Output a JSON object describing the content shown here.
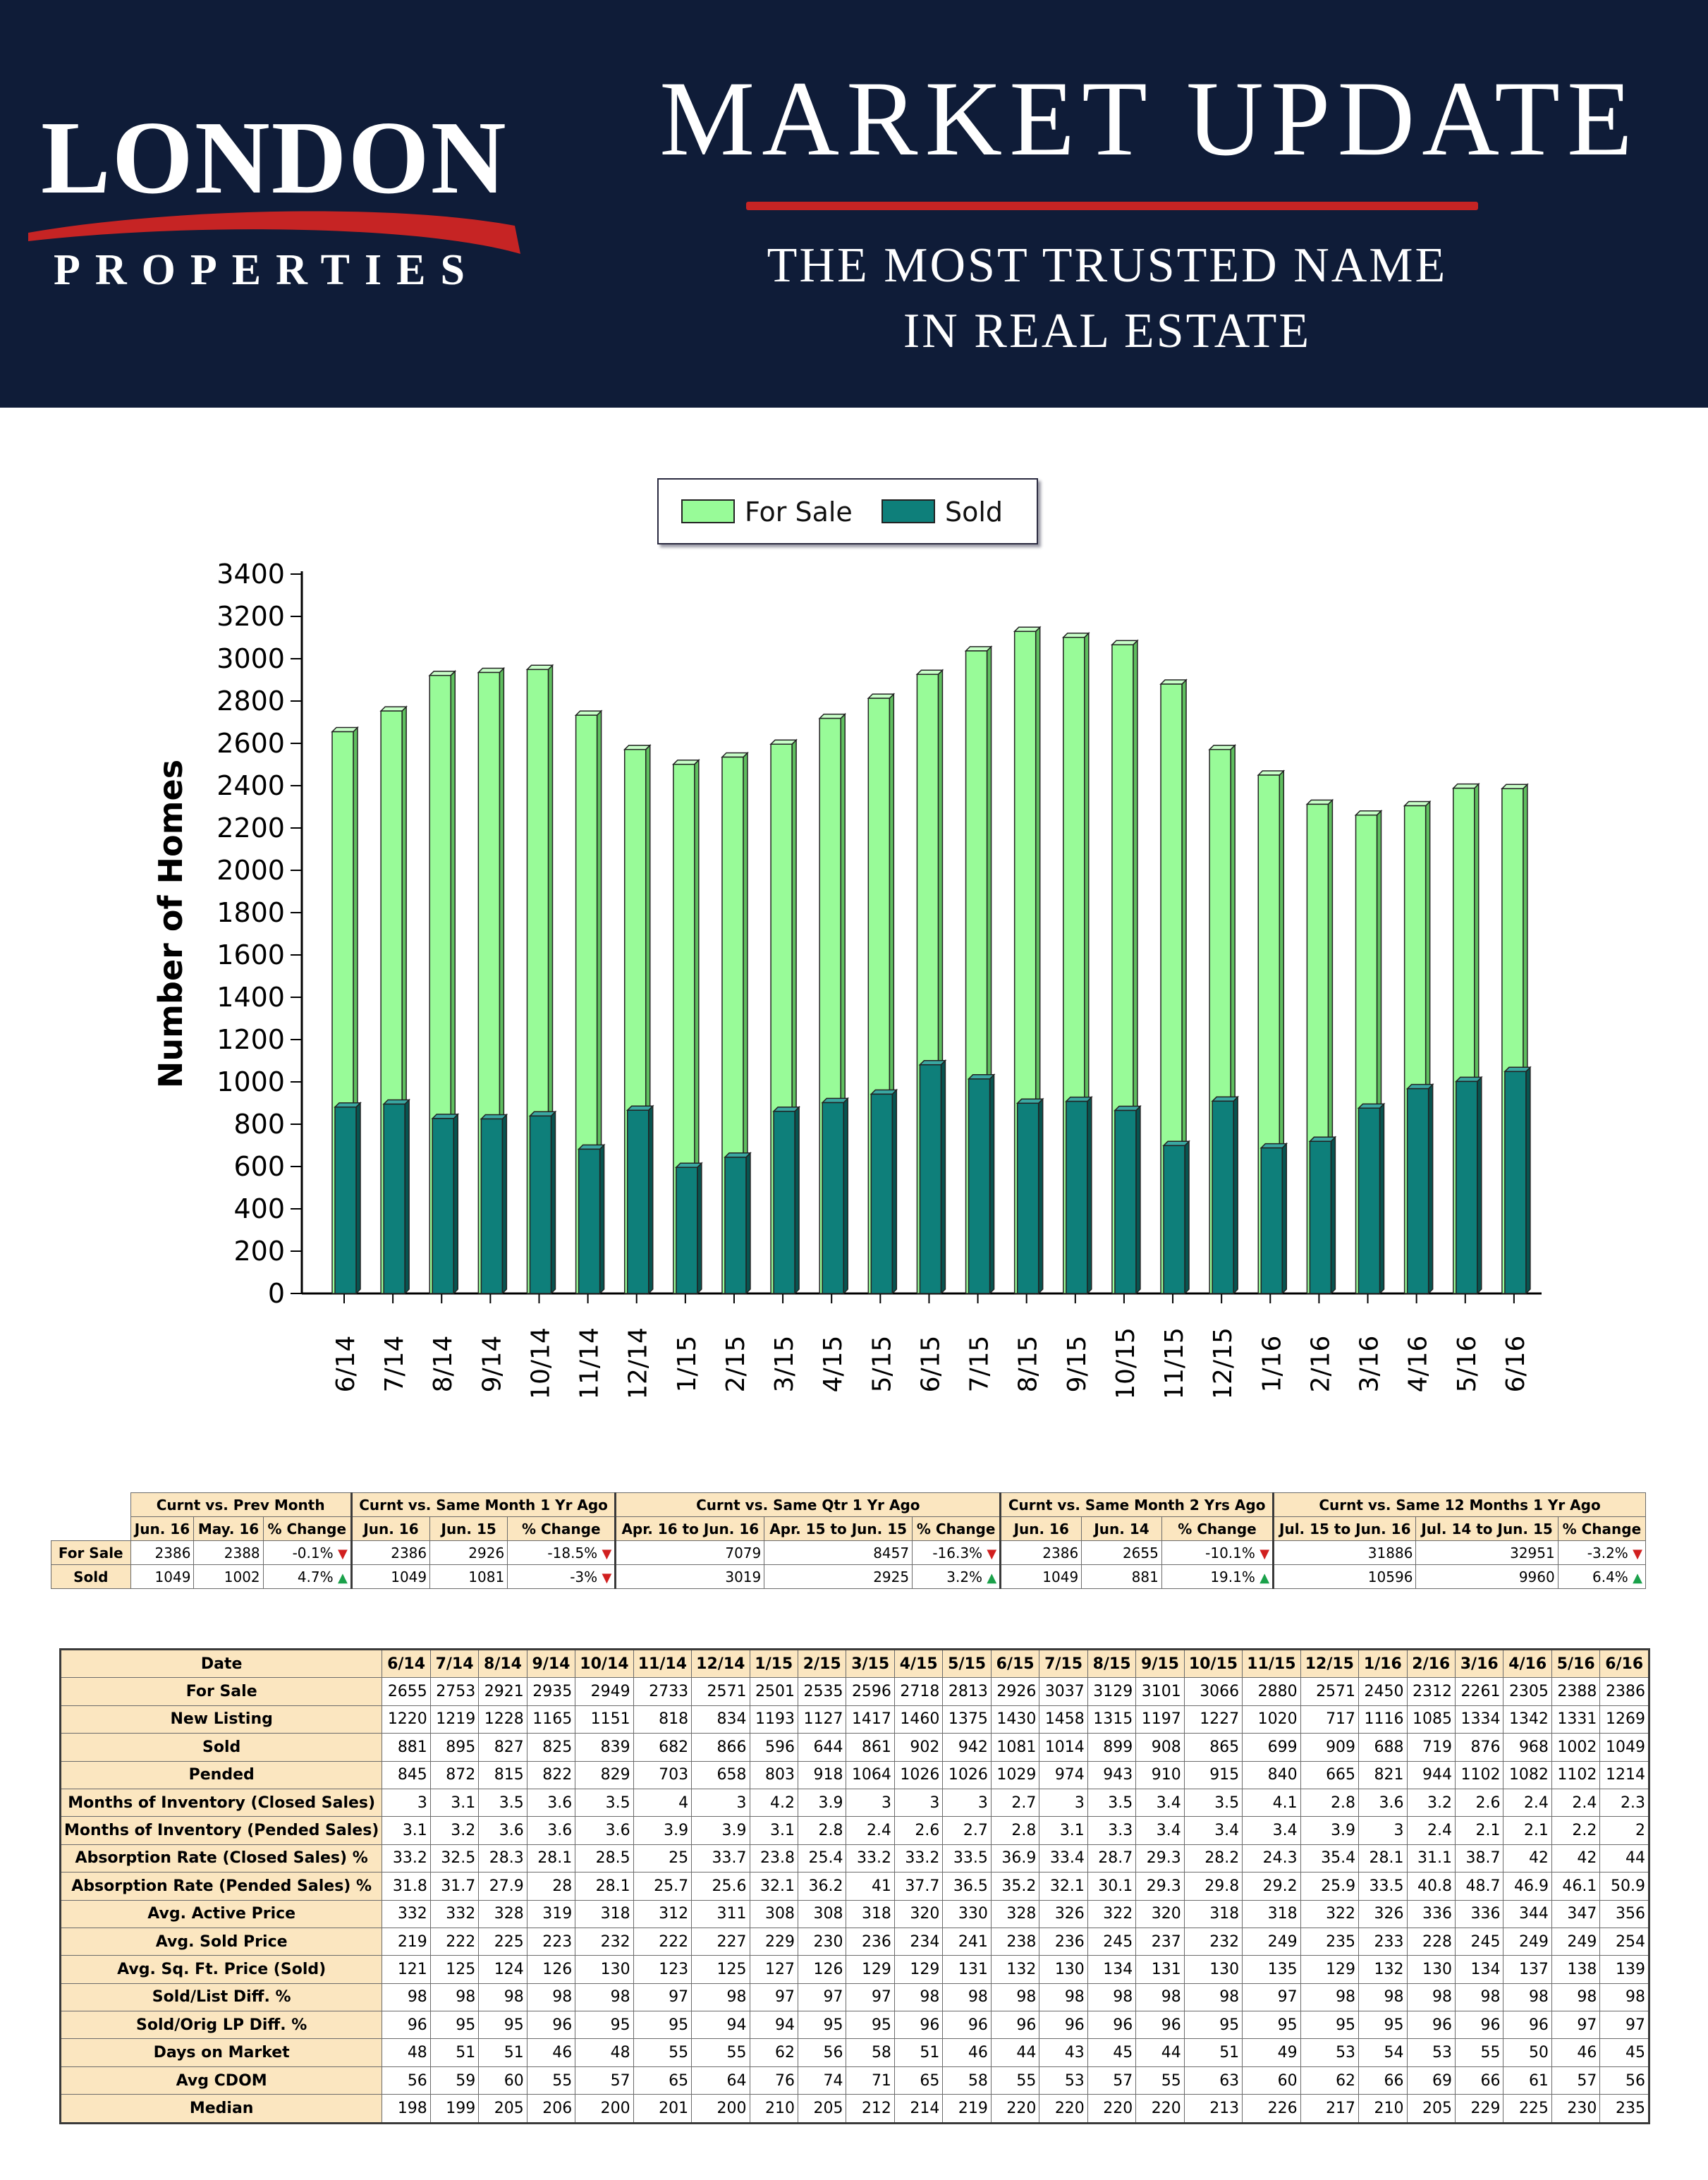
{
  "brand": {
    "logo_top": "LONDON",
    "logo_bottom": "PROPERTIES",
    "title": "MARKET UPDATE",
    "subtitle_line1": "THE MOST TRUSTED NAME",
    "subtitle_line2": "IN REAL ESTATE",
    "colors": {
      "banner": "#0f1c38",
      "accent": "#c62424",
      "for_sale": "#98fb98",
      "sold": "#0e7f7a"
    }
  },
  "chart_data": {
    "type": "bar",
    "title": "",
    "xlabel": "",
    "ylabel": "Number of Homes",
    "ylim": [
      0,
      3400
    ],
    "ytick_step": 200,
    "legend_position": "top-center",
    "categories": [
      "6/14",
      "7/14",
      "8/14",
      "9/14",
      "10/14",
      "11/14",
      "12/14",
      "1/15",
      "2/15",
      "3/15",
      "4/15",
      "5/15",
      "6/15",
      "7/15",
      "8/15",
      "9/15",
      "10/15",
      "11/15",
      "12/15",
      "1/16",
      "2/16",
      "3/16",
      "4/16",
      "5/16",
      "6/16"
    ],
    "series": [
      {
        "name": "For Sale",
        "color": "#98fb98",
        "values": [
          2655,
          2753,
          2921,
          2935,
          2949,
          2733,
          2571,
          2501,
          2535,
          2596,
          2718,
          2813,
          2926,
          3037,
          3129,
          3101,
          3066,
          2880,
          2571,
          2450,
          2312,
          2261,
          2305,
          2388,
          2386
        ]
      },
      {
        "name": "Sold",
        "color": "#0e7f7a",
        "values": [
          881,
          895,
          827,
          825,
          839,
          682,
          866,
          596,
          644,
          861,
          902,
          942,
          1081,
          1014,
          899,
          908,
          865,
          699,
          909,
          688,
          719,
          876,
          968,
          1002,
          1049
        ]
      }
    ]
  },
  "summary": {
    "groups": [
      "Curnt vs. Prev Month",
      "Curnt vs. Same Month 1 Yr Ago",
      "Curnt vs. Same Qtr 1 Yr Ago",
      "Curnt vs. Same Month 2 Yrs Ago",
      "Curnt vs. Same 12 Months 1 Yr Ago"
    ],
    "subheaders": [
      "Jun. 16",
      "May. 16",
      "% Change",
      "Jun. 16",
      "Jun. 15",
      "% Change",
      "Apr. 16 to Jun. 16",
      "Apr. 15 to Jun. 15",
      "% Change",
      "Jun. 16",
      "Jun. 14",
      "% Change",
      "Jul. 15 to Jun. 16",
      "Jul. 14 to Jun. 15",
      "% Change"
    ],
    "rows": [
      {
        "label": "For Sale",
        "cells": [
          "2386",
          "2388",
          "-0.1%",
          "2386",
          "2926",
          "-18.5%",
          "7079",
          "8457",
          "-16.3%",
          "2386",
          "2655",
          "-10.1%",
          "31886",
          "32951",
          "-3.2%"
        ],
        "dirs": [
          "down",
          "down",
          "down",
          "down",
          "down"
        ]
      },
      {
        "label": "Sold",
        "cells": [
          "1049",
          "1002",
          "4.7%",
          "1049",
          "1081",
          "-3%",
          "3019",
          "2925",
          "3.2%",
          "1049",
          "881",
          "19.1%",
          "10596",
          "9960",
          "6.4%"
        ],
        "dirs": [
          "up",
          "down",
          "up",
          "up",
          "up"
        ]
      }
    ]
  },
  "stats": {
    "date_label": "Date",
    "dates": [
      "6/14",
      "7/14",
      "8/14",
      "9/14",
      "10/14",
      "11/14",
      "12/14",
      "1/15",
      "2/15",
      "3/15",
      "4/15",
      "5/15",
      "6/15",
      "7/15",
      "8/15",
      "9/15",
      "10/15",
      "11/15",
      "12/15",
      "1/16",
      "2/16",
      "3/16",
      "4/16",
      "5/16",
      "6/16"
    ],
    "rows": [
      {
        "label": "For Sale",
        "values": [
          "2655",
          "2753",
          "2921",
          "2935",
          "2949",
          "2733",
          "2571",
          "2501",
          "2535",
          "2596",
          "2718",
          "2813",
          "2926",
          "3037",
          "3129",
          "3101",
          "3066",
          "2880",
          "2571",
          "2450",
          "2312",
          "2261",
          "2305",
          "2388",
          "2386"
        ]
      },
      {
        "label": "New Listing",
        "values": [
          "1220",
          "1219",
          "1228",
          "1165",
          "1151",
          "818",
          "834",
          "1193",
          "1127",
          "1417",
          "1460",
          "1375",
          "1430",
          "1458",
          "1315",
          "1197",
          "1227",
          "1020",
          "717",
          "1116",
          "1085",
          "1334",
          "1342",
          "1331",
          "1269"
        ]
      },
      {
        "label": "Sold",
        "values": [
          "881",
          "895",
          "827",
          "825",
          "839",
          "682",
          "866",
          "596",
          "644",
          "861",
          "902",
          "942",
          "1081",
          "1014",
          "899",
          "908",
          "865",
          "699",
          "909",
          "688",
          "719",
          "876",
          "968",
          "1002",
          "1049"
        ]
      },
      {
        "label": "Pended",
        "values": [
          "845",
          "872",
          "815",
          "822",
          "829",
          "703",
          "658",
          "803",
          "918",
          "1064",
          "1026",
          "1026",
          "1029",
          "974",
          "943",
          "910",
          "915",
          "840",
          "665",
          "821",
          "944",
          "1102",
          "1082",
          "1102",
          "1214"
        ]
      },
      {
        "label": "Months of Inventory (Closed Sales)",
        "values": [
          "3",
          "3.1",
          "3.5",
          "3.6",
          "3.5",
          "4",
          "3",
          "4.2",
          "3.9",
          "3",
          "3",
          "3",
          "2.7",
          "3",
          "3.5",
          "3.4",
          "3.5",
          "4.1",
          "2.8",
          "3.6",
          "3.2",
          "2.6",
          "2.4",
          "2.4",
          "2.3"
        ]
      },
      {
        "label": "Months of Inventory (Pended Sales)",
        "values": [
          "3.1",
          "3.2",
          "3.6",
          "3.6",
          "3.6",
          "3.9",
          "3.9",
          "3.1",
          "2.8",
          "2.4",
          "2.6",
          "2.7",
          "2.8",
          "3.1",
          "3.3",
          "3.4",
          "3.4",
          "3.4",
          "3.9",
          "3",
          "2.4",
          "2.1",
          "2.1",
          "2.2",
          "2"
        ]
      },
      {
        "label": "Absorption Rate (Closed Sales) %",
        "values": [
          "33.2",
          "32.5",
          "28.3",
          "28.1",
          "28.5",
          "25",
          "33.7",
          "23.8",
          "25.4",
          "33.2",
          "33.2",
          "33.5",
          "36.9",
          "33.4",
          "28.7",
          "29.3",
          "28.2",
          "24.3",
          "35.4",
          "28.1",
          "31.1",
          "38.7",
          "42",
          "42",
          "44"
        ]
      },
      {
        "label": "Absorption Rate (Pended Sales) %",
        "values": [
          "31.8",
          "31.7",
          "27.9",
          "28",
          "28.1",
          "25.7",
          "25.6",
          "32.1",
          "36.2",
          "41",
          "37.7",
          "36.5",
          "35.2",
          "32.1",
          "30.1",
          "29.3",
          "29.8",
          "29.2",
          "25.9",
          "33.5",
          "40.8",
          "48.7",
          "46.9",
          "46.1",
          "50.9"
        ]
      },
      {
        "label": "Avg. Active Price",
        "values": [
          "332",
          "332",
          "328",
          "319",
          "318",
          "312",
          "311",
          "308",
          "308",
          "318",
          "320",
          "330",
          "328",
          "326",
          "322",
          "320",
          "318",
          "318",
          "322",
          "326",
          "336",
          "336",
          "344",
          "347",
          "356"
        ]
      },
      {
        "label": "Avg. Sold Price",
        "values": [
          "219",
          "222",
          "225",
          "223",
          "232",
          "222",
          "227",
          "229",
          "230",
          "236",
          "234",
          "241",
          "238",
          "236",
          "245",
          "237",
          "232",
          "249",
          "235",
          "233",
          "228",
          "245",
          "249",
          "249",
          "254"
        ]
      },
      {
        "label": "Avg. Sq. Ft. Price (Sold)",
        "values": [
          "121",
          "125",
          "124",
          "126",
          "130",
          "123",
          "125",
          "127",
          "126",
          "129",
          "129",
          "131",
          "132",
          "130",
          "134",
          "131",
          "130",
          "135",
          "129",
          "132",
          "130",
          "134",
          "137",
          "138",
          "139"
        ]
      },
      {
        "label": "Sold/List Diff. %",
        "values": [
          "98",
          "98",
          "98",
          "98",
          "98",
          "97",
          "98",
          "97",
          "97",
          "97",
          "98",
          "98",
          "98",
          "98",
          "98",
          "98",
          "98",
          "97",
          "98",
          "98",
          "98",
          "98",
          "98",
          "98",
          "98"
        ]
      },
      {
        "label": "Sold/Orig LP Diff. %",
        "values": [
          "96",
          "95",
          "95",
          "96",
          "95",
          "95",
          "94",
          "94",
          "95",
          "95",
          "96",
          "96",
          "96",
          "96",
          "96",
          "96",
          "95",
          "95",
          "95",
          "95",
          "96",
          "96",
          "96",
          "97",
          "97"
        ]
      },
      {
        "label": "Days on Market",
        "values": [
          "48",
          "51",
          "51",
          "46",
          "48",
          "55",
          "55",
          "62",
          "56",
          "58",
          "51",
          "46",
          "44",
          "43",
          "45",
          "44",
          "51",
          "49",
          "53",
          "54",
          "53",
          "55",
          "50",
          "46",
          "45"
        ]
      },
      {
        "label": "Avg CDOM",
        "values": [
          "56",
          "59",
          "60",
          "55",
          "57",
          "65",
          "64",
          "76",
          "74",
          "71",
          "65",
          "58",
          "55",
          "53",
          "57",
          "55",
          "63",
          "60",
          "62",
          "66",
          "69",
          "66",
          "61",
          "57",
          "56"
        ]
      },
      {
        "label": "Median",
        "values": [
          "198",
          "199",
          "205",
          "206",
          "200",
          "201",
          "200",
          "210",
          "205",
          "212",
          "214",
          "219",
          "220",
          "220",
          "220",
          "220",
          "213",
          "226",
          "217",
          "210",
          "205",
          "229",
          "225",
          "230",
          "235"
        ]
      }
    ]
  }
}
